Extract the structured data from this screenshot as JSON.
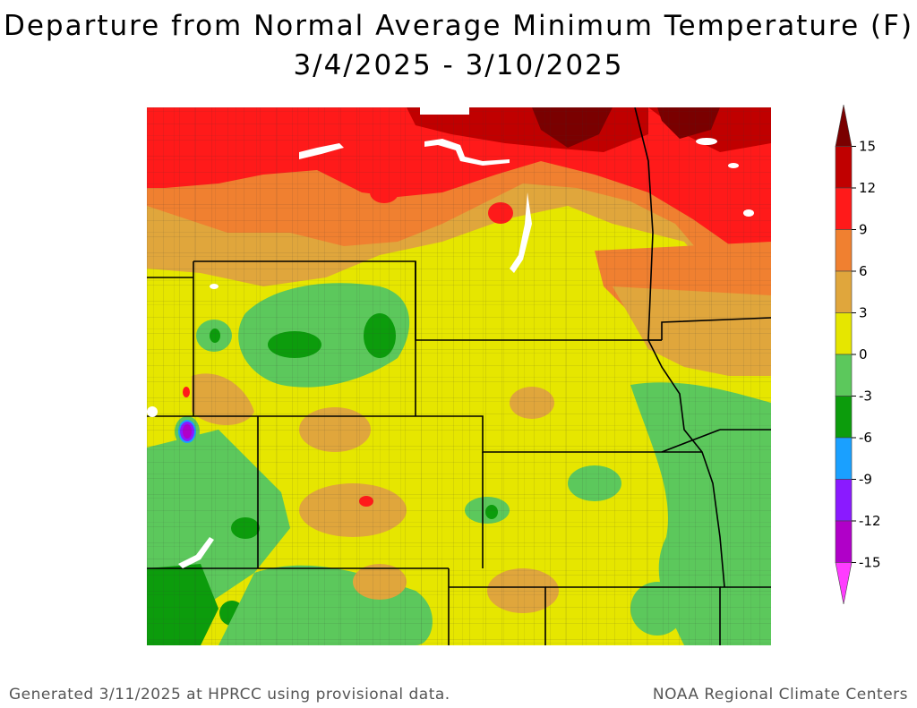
{
  "title_line1": "Departure from Normal Average Minimum Temperature (F)",
  "title_line2": "3/4/2025 - 3/10/2025",
  "legend": {
    "ticks": [
      "15",
      "12",
      "9",
      "6",
      "3",
      "0",
      "-3",
      "-6",
      "-9",
      "-12",
      "-15"
    ],
    "bands": [
      {
        "from": 15,
        "to": 18,
        "color": "#7a0000"
      },
      {
        "from": 12,
        "to": 15,
        "color": "#c00000"
      },
      {
        "from": 9,
        "to": 12,
        "color": "#ff1a1a"
      },
      {
        "from": 6,
        "to": 9,
        "color": "#f08030"
      },
      {
        "from": 3,
        "to": 6,
        "color": "#e0a63c"
      },
      {
        "from": 0,
        "to": 3,
        "color": "#e6e600"
      },
      {
        "from": -3,
        "to": 0,
        "color": "#5cc85c"
      },
      {
        "from": -6,
        "to": -3,
        "color": "#0c9c0c"
      },
      {
        "from": -9,
        "to": -6,
        "color": "#1aa0ff"
      },
      {
        "from": -12,
        "to": -9,
        "color": "#8a1aff"
      },
      {
        "from": -15,
        "to": -12,
        "color": "#b000c8"
      },
      {
        "from": -18,
        "to": -15,
        "color": "#ff3cff"
      }
    ]
  },
  "footer_left": "Generated 3/11/2025 at HPRCC using provisional data.",
  "footer_right": "NOAA Regional Climate Centers"
}
